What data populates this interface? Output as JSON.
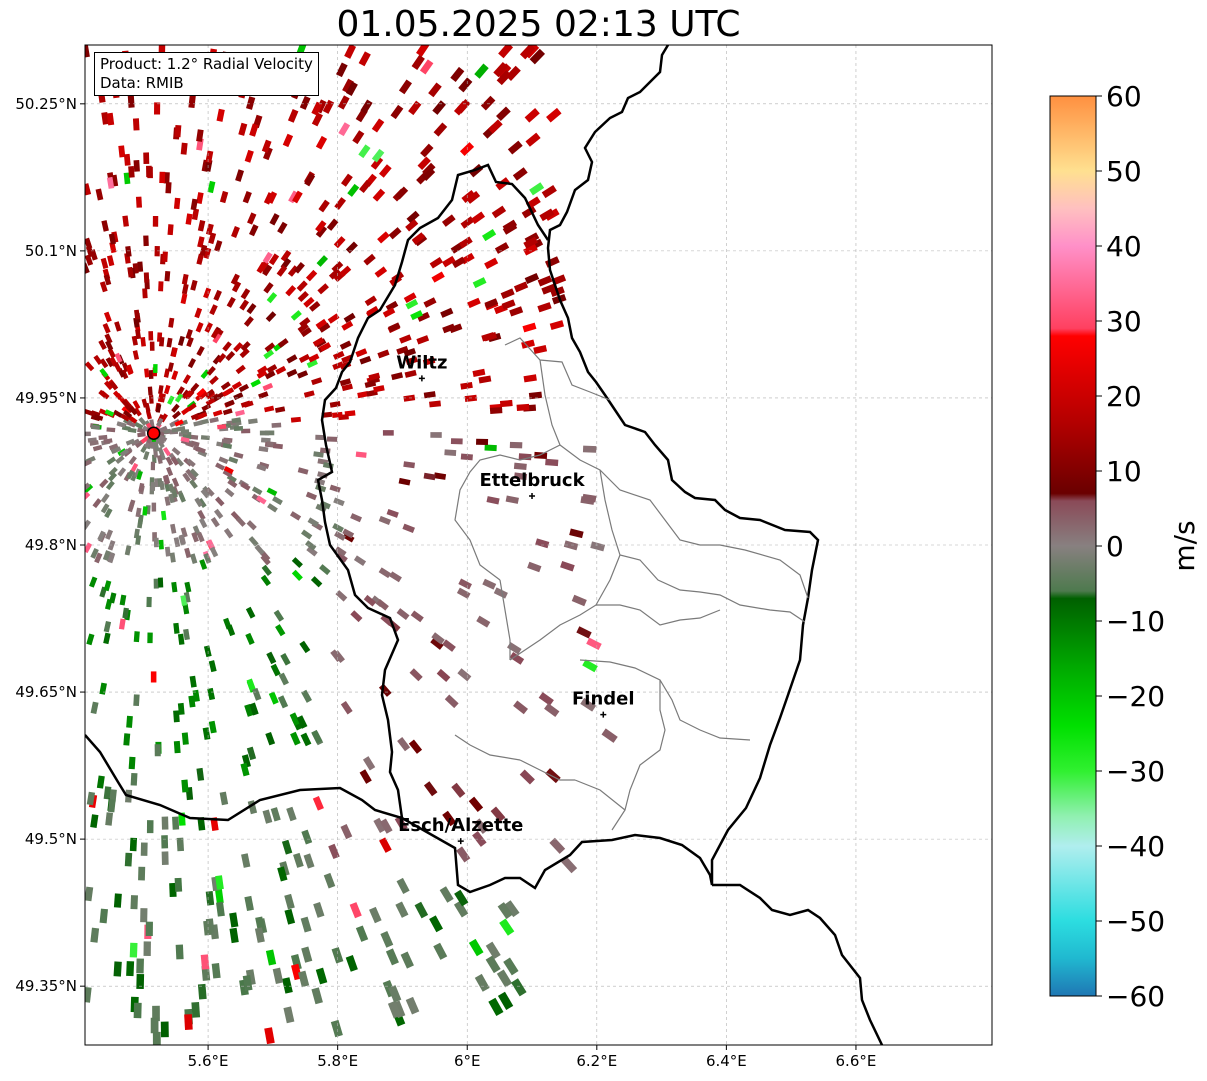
{
  "title": "01.05.2025 02:13 UTC",
  "info": {
    "product": "Product: 1.2° Radial Velocity",
    "source": "Data: RMIB"
  },
  "map": {
    "lon_range": [
      5.41,
      6.81
    ],
    "lat_range": [
      49.29,
      50.31
    ],
    "lon_ticks": [
      {
        "v": 5.6,
        "label": "5.6°E"
      },
      {
        "v": 5.8,
        "label": "5.8°E"
      },
      {
        "v": 6.0,
        "label": "6°E"
      },
      {
        "v": 6.2,
        "label": "6.2°E"
      },
      {
        "v": 6.4,
        "label": "6.4°E"
      },
      {
        "v": 6.6,
        "label": "6.6°E"
      }
    ],
    "lat_ticks": [
      {
        "v": 49.35,
        "label": "49.35°N"
      },
      {
        "v": 49.5,
        "label": "49.5°N"
      },
      {
        "v": 49.65,
        "label": "49.65°N"
      },
      {
        "v": 49.8,
        "label": "49.8°N"
      },
      {
        "v": 49.95,
        "label": "49.95°N"
      },
      {
        "v": 50.1,
        "label": "50.1°N"
      },
      {
        "v": 50.25,
        "label": "50.25°N"
      }
    ],
    "radar_site": {
      "lon": 5.516,
      "lat": 49.914
    },
    "cities": [
      {
        "name": "Wiltz",
        "lon": 5.93,
        "lat": 49.97
      },
      {
        "name": "Ettelbruck",
        "lon": 6.1,
        "lat": 49.85
      },
      {
        "name": "Findel",
        "lon": 6.21,
        "lat": 49.627
      },
      {
        "name": "Esch/Alzette",
        "lon": 5.99,
        "lat": 49.498
      }
    ]
  },
  "colorbar": {
    "label": "m/s",
    "min": -60,
    "max": 60,
    "ticks": [
      {
        "v": 60,
        "label": "60"
      },
      {
        "v": 50,
        "label": "50"
      },
      {
        "v": 40,
        "label": "40"
      },
      {
        "v": 30,
        "label": "30"
      },
      {
        "v": 20,
        "label": "20"
      },
      {
        "v": 10,
        "label": "10"
      },
      {
        "v": 0,
        "label": "0"
      },
      {
        "v": -10,
        "label": "−10"
      },
      {
        "v": -20,
        "label": "−20"
      },
      {
        "v": -30,
        "label": "−30"
      },
      {
        "v": -40,
        "label": "−40"
      },
      {
        "v": -50,
        "label": "−50"
      },
      {
        "v": -60,
        "label": "−60"
      }
    ],
    "stops": [
      {
        "v": -60,
        "color": "#1f77b4"
      },
      {
        "v": -55,
        "color": "#20b8d0"
      },
      {
        "v": -50,
        "color": "#2cdde0"
      },
      {
        "v": -40,
        "color": "#b0eeee"
      },
      {
        "v": -36,
        "color": "#90f0b0"
      },
      {
        "v": -30,
        "color": "#30f030"
      },
      {
        "v": -24,
        "color": "#00e000"
      },
      {
        "v": -16,
        "color": "#00a800"
      },
      {
        "v": -7,
        "color": "#006000"
      },
      {
        "v": -6,
        "color": "#4e7a4e"
      },
      {
        "v": 0,
        "color": "#888080"
      },
      {
        "v": 6,
        "color": "#8a4a58"
      },
      {
        "v": 7,
        "color": "#6a0000"
      },
      {
        "v": 16,
        "color": "#b00000"
      },
      {
        "v": 28,
        "color": "#ff0000"
      },
      {
        "v": 29,
        "color": "#ff4060"
      },
      {
        "v": 40,
        "color": "#ff90c8"
      },
      {
        "v": 45,
        "color": "#ffc0c0"
      },
      {
        "v": 50,
        "color": "#ffe090"
      },
      {
        "v": 60,
        "color": "#ff9040"
      }
    ]
  }
}
